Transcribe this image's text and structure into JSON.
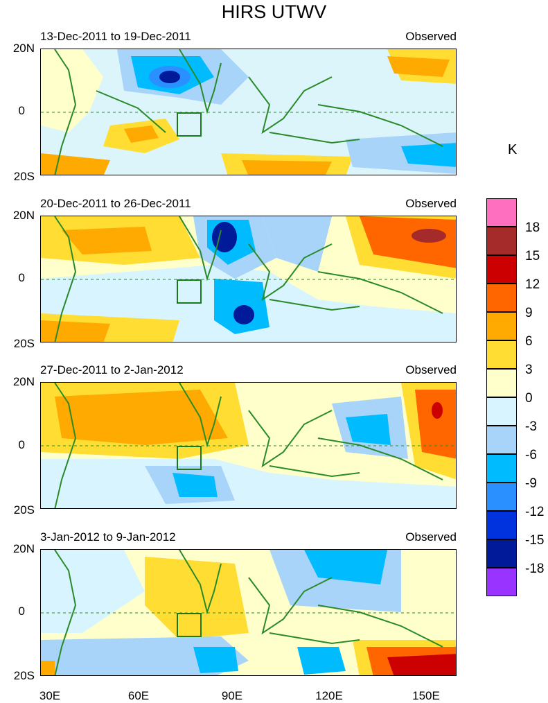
{
  "figure": {
    "title": "HIRS UTWV"
  },
  "panels": [
    {
      "date_range": "13-Dec-2011 to 19-Dec-2011",
      "tag": "Observed"
    },
    {
      "date_range": "20-Dec-2011 to 26-Dec-2011",
      "tag": "Observed"
    },
    {
      "date_range": "27-Dec-2011 to 2-Jan-2012",
      "tag": "Observed"
    },
    {
      "date_range": "3-Jan-2012 to 9-Jan-2012",
      "tag": "Observed"
    }
  ],
  "lat_labels": {
    "north": "20N",
    "equator": "0",
    "south": "20S"
  },
  "lon_labels": [
    "30E",
    "60E",
    "90E",
    "120E",
    "150E"
  ],
  "colorbar": {
    "units": "K",
    "levels": [
      "18",
      "15",
      "12",
      "9",
      "6",
      "3",
      "0",
      "-3",
      "-6",
      "-9",
      "-12",
      "-15",
      "-18"
    ],
    "colors": [
      "#ff6fc0",
      "#a52a2a",
      "#cc0000",
      "#ff6600",
      "#ffaa00",
      "#ffdd33",
      "#ffffcc",
      "#d8f4ff",
      "#a8d4fa",
      "#00bcff",
      "#2a90ff",
      "#0033dd",
      "#001a99",
      "#9933ff"
    ]
  },
  "map_colors": {
    "coast": "#2a8a2a",
    "box": "#1a7a1a"
  }
}
